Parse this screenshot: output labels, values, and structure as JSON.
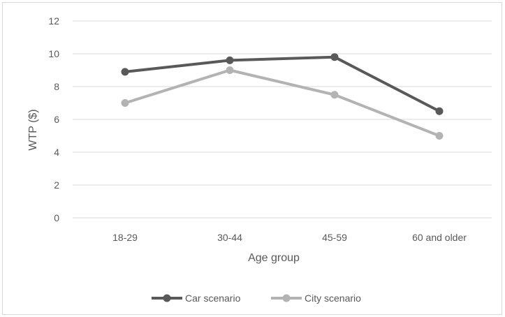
{
  "chart_data": {
    "type": "line",
    "title": "",
    "xlabel": "Age group",
    "ylabel": "WTP ($)",
    "categories": [
      "18-29",
      "30-44",
      "45-59",
      "60 and older"
    ],
    "ylim": [
      0,
      12
    ],
    "yticks": [
      0,
      2,
      4,
      6,
      8,
      10,
      12
    ],
    "grid": true,
    "legend_position": "bottom",
    "series": [
      {
        "name": "Car scenario",
        "color": "#595959",
        "values": [
          8.9,
          9.6,
          9.8,
          6.5
        ]
      },
      {
        "name": "City scenario",
        "color": "#b3b3b3",
        "values": [
          7.0,
          9.0,
          7.5,
          5.0
        ]
      }
    ]
  }
}
